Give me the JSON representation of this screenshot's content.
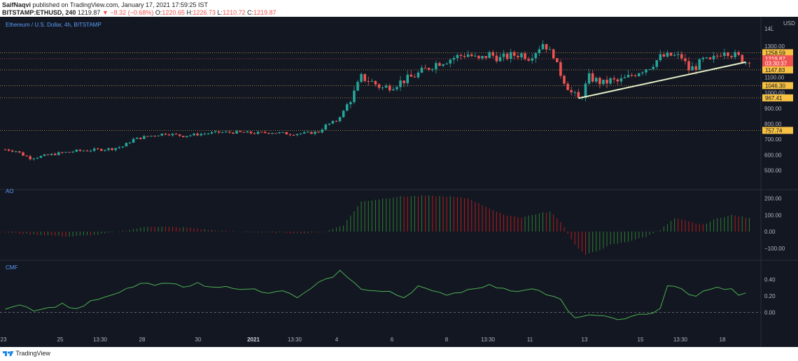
{
  "header": {
    "line1_user": "SaifNaqvi",
    "line1_rest": " published on TradingView.com, January 17, 2021 17:59:25 IST",
    "line2_symbol": "BITSTAMP:ETHUSD, 240",
    "line2_last": "1219.87",
    "line2_change": "▼ −8.32 (−0.68%)",
    "line2_o": "O:",
    "line2_o_val": "1220.65",
    "line2_h": "H:",
    "line2_h_val": "1226.73",
    "line2_l": "L:",
    "line2_l_val": "1210.72",
    "line2_c": "C:",
    "line2_c_val": "1219.87"
  },
  "pane_titles": {
    "main": "Ethereum / U.S. Dollar, 4h, BITSTAMP",
    "ao": "AO",
    "cmf": "CMF"
  },
  "currency": "USD",
  "price_axis": {
    "range": [
      385,
      1400
    ],
    "ticks": [
      "1300.00",
      "1100.00",
      "1000.00",
      "900.00",
      "800.00",
      "700.00",
      "600.00",
      "500.00"
    ],
    "top_tick": "14Ĺ"
  },
  "level_labels": [
    {
      "value": 1258.59,
      "text": "1258.59",
      "color": "#f7c244"
    },
    {
      "value": 1219.87,
      "text": "1219.87",
      "color": "#ef5350"
    },
    {
      "value": 1190.0,
      "text": "03:30:37",
      "color": "#ef5350"
    },
    {
      "value": 1147.83,
      "text": "1147.83",
      "color": "#f7c244"
    },
    {
      "value": 1046.3,
      "text": "1046.30",
      "color": "#f7c244"
    },
    {
      "value": 967.41,
      "text": "967.41",
      "color": "#f7c244"
    },
    {
      "value": 757.74,
      "text": "757.74",
      "color": "#f7c244"
    }
  ],
  "ao_axis": {
    "ticks": [
      "200.00",
      "100.00",
      "0.00",
      "−100.00"
    ]
  },
  "cmf_axis": {
    "ticks": [
      "0.40",
      "0.20",
      "0.00"
    ]
  },
  "x_axis": [
    "23",
    "25",
    "13:30",
    "28",
    "30",
    "2021",
    "13:30",
    "4",
    "6",
    "8",
    "13:30",
    "11",
    "13",
    "15",
    "13:30",
    "18"
  ],
  "footer": {
    "brand": "TradingView"
  },
  "colors": {
    "up": "#26a69a",
    "down": "#ef5350",
    "level": "#f7c244",
    "trend": "#e4f0c8",
    "cmf": "#4caf50"
  },
  "chart_data": {
    "type": "candlestick",
    "title": "Ethereum / U.S. Dollar, 4h, BITSTAMP",
    "close_anchors": [
      [
        0,
        635
      ],
      [
        3,
        625
      ],
      [
        5,
        600
      ],
      [
        7,
        580
      ],
      [
        10,
        590
      ],
      [
        15,
        610
      ],
      [
        20,
        625
      ],
      [
        25,
        632
      ],
      [
        30,
        640
      ],
      [
        33,
        655
      ],
      [
        36,
        700
      ],
      [
        40,
        720
      ],
      [
        45,
        738
      ],
      [
        50,
        722
      ],
      [
        55,
        735
      ],
      [
        60,
        745
      ],
      [
        65,
        745
      ],
      [
        70,
        740
      ],
      [
        75,
        745
      ],
      [
        80,
        735
      ],
      [
        85,
        740
      ],
      [
        88,
        748
      ],
      [
        90,
        790
      ],
      [
        93,
        820
      ],
      [
        95,
        880
      ],
      [
        98,
        1000
      ],
      [
        100,
        1100
      ],
      [
        103,
        1070
      ],
      [
        106,
        1030
      ],
      [
        109,
        1050
      ],
      [
        112,
        1080
      ],
      [
        115,
        1110
      ],
      [
        118,
        1150
      ],
      [
        121,
        1190
      ],
      [
        124,
        1210
      ],
      [
        127,
        1235
      ],
      [
        130,
        1250
      ],
      [
        133,
        1210
      ],
      [
        136,
        1250
      ],
      [
        139,
        1220
      ],
      [
        142,
        1240
      ],
      [
        145,
        1250
      ],
      [
        147,
        1230
      ],
      [
        149,
        1270
      ],
      [
        151,
        1320
      ],
      [
        152,
        1300
      ],
      [
        153,
        1260
      ],
      [
        154,
        1250
      ],
      [
        155,
        1170
      ],
      [
        157,
        1080
      ],
      [
        159,
        1000
      ],
      [
        161,
        960
      ],
      [
        162,
        990
      ],
      [
        164,
        1100
      ],
      [
        166,
        1080
      ],
      [
        168,
        1060
      ],
      [
        170,
        1080
      ],
      [
        172,
        1070
      ],
      [
        175,
        1100
      ],
      [
        178,
        1140
      ],
      [
        181,
        1170
      ],
      [
        184,
        1230
      ],
      [
        187,
        1240
      ],
      [
        190,
        1230
      ],
      [
        192,
        1150
      ],
      [
        194,
        1170
      ],
      [
        196,
        1210
      ],
      [
        198,
        1200
      ],
      [
        200,
        1240
      ],
      [
        202,
        1280
      ],
      [
        204,
        1250
      ],
      [
        206,
        1230
      ],
      [
        208,
        1200
      ],
      [
        209,
        1220
      ]
    ],
    "ao_anchors": [
      [
        0,
        -5
      ],
      [
        10,
        -20
      ],
      [
        18,
        -30
      ],
      [
        25,
        -20
      ],
      [
        32,
        0
      ],
      [
        40,
        30
      ],
      [
        50,
        25
      ],
      [
        60,
        5
      ],
      [
        70,
        -5
      ],
      [
        85,
        -10
      ],
      [
        90,
        0
      ],
      [
        95,
        40
      ],
      [
        100,
        180
      ],
      [
        110,
        210
      ],
      [
        118,
        215
      ],
      [
        125,
        210
      ],
      [
        130,
        200
      ],
      [
        135,
        150
      ],
      [
        140,
        100
      ],
      [
        145,
        85
      ],
      [
        150,
        110
      ],
      [
        153,
        120
      ],
      [
        156,
        60
      ],
      [
        158,
        -10
      ],
      [
        160,
        -80
      ],
      [
        163,
        -140
      ],
      [
        166,
        -120
      ],
      [
        170,
        -80
      ],
      [
        175,
        -60
      ],
      [
        180,
        -30
      ],
      [
        184,
        10
      ],
      [
        188,
        80
      ],
      [
        192,
        60
      ],
      [
        196,
        40
      ],
      [
        200,
        80
      ],
      [
        204,
        100
      ],
      [
        209,
        80
      ]
    ],
    "cmf_anchors": [
      [
        0,
        0.05
      ],
      [
        4,
        0.1
      ],
      [
        8,
        0.03
      ],
      [
        12,
        0.05
      ],
      [
        16,
        0.1
      ],
      [
        20,
        0.04
      ],
      [
        25,
        0.15
      ],
      [
        30,
        0.2
      ],
      [
        35,
        0.3
      ],
      [
        38,
        0.35
      ],
      [
        42,
        0.33
      ],
      [
        46,
        0.35
      ],
      [
        50,
        0.32
      ],
      [
        54,
        0.35
      ],
      [
        58,
        0.3
      ],
      [
        62,
        0.33
      ],
      [
        66,
        0.27
      ],
      [
        70,
        0.28
      ],
      [
        74,
        0.22
      ],
      [
        78,
        0.27
      ],
      [
        82,
        0.17
      ],
      [
        86,
        0.28
      ],
      [
        88,
        0.38
      ],
      [
        92,
        0.42
      ],
      [
        94,
        0.52
      ],
      [
        97,
        0.4
      ],
      [
        100,
        0.28
      ],
      [
        104,
        0.25
      ],
      [
        108,
        0.26
      ],
      [
        112,
        0.18
      ],
      [
        116,
        0.32
      ],
      [
        120,
        0.25
      ],
      [
        124,
        0.22
      ],
      [
        128,
        0.25
      ],
      [
        132,
        0.3
      ],
      [
        136,
        0.33
      ],
      [
        140,
        0.28
      ],
      [
        144,
        0.26
      ],
      [
        148,
        0.3
      ],
      [
        152,
        0.22
      ],
      [
        156,
        0.15
      ],
      [
        158,
        0.02
      ],
      [
        160,
        -0.08
      ],
      [
        163,
        -0.02
      ],
      [
        166,
        -0.05
      ],
      [
        170,
        -0.06
      ],
      [
        174,
        -0.09
      ],
      [
        178,
        -0.03
      ],
      [
        182,
        0.0
      ],
      [
        184,
        0.05
      ],
      [
        186,
        0.33
      ],
      [
        190,
        0.28
      ],
      [
        193,
        0.18
      ],
      [
        196,
        0.25
      ],
      [
        200,
        0.3
      ],
      [
        204,
        0.28
      ],
      [
        206,
        0.2
      ],
      [
        209,
        0.27
      ]
    ],
    "trendline": [
      [
        161,
        965
      ],
      [
        208,
        1198
      ]
    ],
    "candle_count": 210,
    "ao_range": [
      -160,
      240
    ],
    "cmf_range": [
      -0.15,
      0.6
    ]
  }
}
